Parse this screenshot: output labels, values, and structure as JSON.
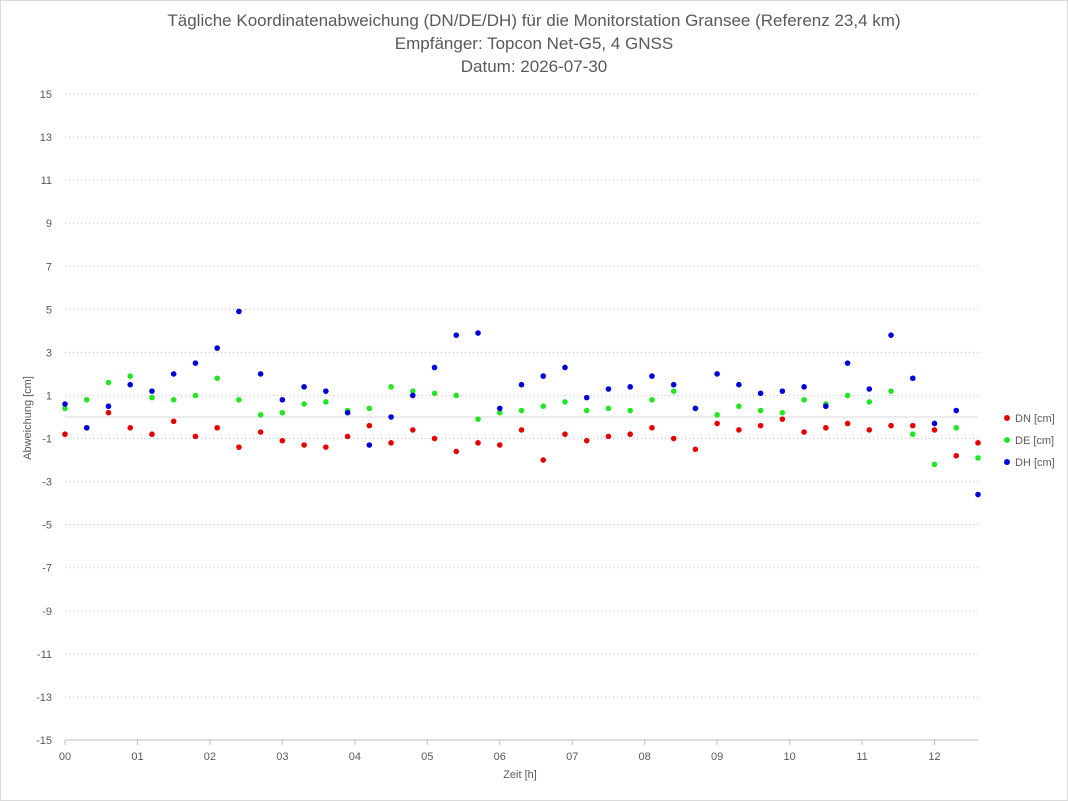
{
  "chart_data": {
    "type": "scatter",
    "title": "Tägliche Koordinatenabweichung (DN/DE/DH) für die Monitorstation Gransee (Referenz 23,4 km)",
    "subtitle": "Empfänger: Topcon Net-G5, 4 GNSS",
    "date_line": "Datum: 2026-07-30",
    "xlabel": "Zeit [h]",
    "ylabel": "Abweichung [cm]",
    "xlim": [
      0,
      12.6
    ],
    "ylim": [
      -15,
      15
    ],
    "x_ticks": [
      {
        "v": 0,
        "label": "00"
      },
      {
        "v": 1,
        "label": "01"
      },
      {
        "v": 2,
        "label": "02"
      },
      {
        "v": 3,
        "label": "03"
      },
      {
        "v": 4,
        "label": "04"
      },
      {
        "v": 5,
        "label": "05"
      },
      {
        "v": 6,
        "label": "06"
      },
      {
        "v": 7,
        "label": "07"
      },
      {
        "v": 8,
        "label": "08"
      },
      {
        "v": 9,
        "label": "09"
      },
      {
        "v": 10,
        "label": "10"
      },
      {
        "v": 11,
        "label": "11"
      },
      {
        "v": 12,
        "label": "12"
      }
    ],
    "y_ticks": [
      15,
      13,
      11,
      9,
      7,
      5,
      3,
      1,
      -1,
      -3,
      -5,
      -7,
      -9,
      -11,
      -13,
      -15
    ],
    "grid": "horizontal-dotted",
    "legend": "right",
    "series": [
      {
        "name": "DN [cm]",
        "color": "#e60000",
        "x": [
          0.0,
          0.3,
          0.6,
          0.9,
          1.2,
          1.5,
          1.8,
          2.1,
          2.4,
          2.7,
          3.0,
          3.3,
          3.6,
          3.9,
          4.2,
          4.5,
          4.8,
          5.1,
          5.4,
          5.7,
          6.0,
          6.3,
          6.6,
          6.9,
          7.2,
          7.5,
          7.8,
          8.1,
          8.4,
          8.7,
          9.0,
          9.3,
          9.6,
          9.9,
          10.2,
          10.5,
          10.8,
          11.1,
          11.4,
          11.7,
          12.0,
          12.3,
          12.6
        ],
        "y": [
          -0.8,
          -0.5,
          0.2,
          -0.5,
          -0.8,
          -0.2,
          -0.9,
          -0.5,
          -1.4,
          -0.7,
          -1.1,
          -1.3,
          -1.4,
          -0.9,
          -0.4,
          -1.2,
          -0.6,
          -1.0,
          -1.6,
          -1.2,
          -1.3,
          -0.6,
          -2.0,
          -0.8,
          -1.1,
          -0.9,
          -0.8,
          -0.5,
          -1.0,
          -1.5,
          -0.3,
          -0.6,
          -0.4,
          -0.1,
          -0.7,
          -0.5,
          -0.3,
          -0.6,
          -0.4,
          -0.4,
          -0.6,
          -1.8,
          -1.2
        ]
      },
      {
        "name": "DE [cm]",
        "color": "#22e622",
        "x": [
          0.0,
          0.3,
          0.6,
          0.9,
          1.2,
          1.5,
          1.8,
          2.1,
          2.4,
          2.7,
          3.0,
          3.3,
          3.6,
          3.9,
          4.2,
          4.5,
          4.8,
          5.1,
          5.4,
          5.7,
          6.0,
          6.3,
          6.6,
          6.9,
          7.2,
          7.5,
          7.8,
          8.1,
          8.4,
          8.7,
          9.0,
          9.3,
          9.6,
          9.9,
          10.2,
          10.5,
          10.8,
          11.1,
          11.4,
          11.7,
          12.0,
          12.3,
          12.6
        ],
        "y": [
          0.4,
          0.8,
          1.6,
          1.9,
          0.9,
          0.8,
          1.0,
          1.8,
          0.8,
          0.1,
          0.2,
          0.6,
          0.7,
          0.3,
          0.4,
          1.4,
          1.2,
          1.1,
          1.0,
          -0.1,
          0.2,
          0.3,
          0.5,
          0.7,
          0.3,
          0.4,
          0.3,
          0.8,
          1.2,
          0.4,
          0.1,
          0.5,
          0.3,
          0.2,
          0.8,
          0.6,
          1.0,
          0.7,
          1.2,
          -0.8,
          -2.2,
          -0.5,
          -1.9
        ]
      },
      {
        "name": "DH [cm]",
        "color": "#0000d9",
        "x": [
          0.0,
          0.3,
          0.6,
          0.9,
          1.2,
          1.5,
          1.8,
          2.1,
          2.4,
          2.7,
          3.0,
          3.3,
          3.6,
          3.9,
          4.2,
          4.5,
          4.8,
          5.1,
          5.4,
          5.7,
          6.0,
          6.3,
          6.6,
          6.9,
          7.2,
          7.5,
          7.8,
          8.1,
          8.4,
          8.7,
          9.0,
          9.3,
          9.6,
          9.9,
          10.2,
          10.5,
          10.8,
          11.1,
          11.4,
          11.7,
          12.0,
          12.3,
          12.6
        ],
        "y": [
          0.6,
          -0.5,
          0.5,
          1.5,
          1.2,
          2.0,
          2.5,
          3.2,
          4.9,
          2.0,
          0.8,
          1.4,
          1.2,
          0.2,
          -1.3,
          0.0,
          1.0,
          2.3,
          3.8,
          3.9,
          0.4,
          1.5,
          1.9,
          2.3,
          0.9,
          1.3,
          1.4,
          1.9,
          1.5,
          0.4,
          2.0,
          1.5,
          1.1,
          1.2,
          1.4,
          0.5,
          2.5,
          1.3,
          3.8,
          1.8,
          -0.3,
          0.3,
          -3.6
        ]
      }
    ]
  }
}
